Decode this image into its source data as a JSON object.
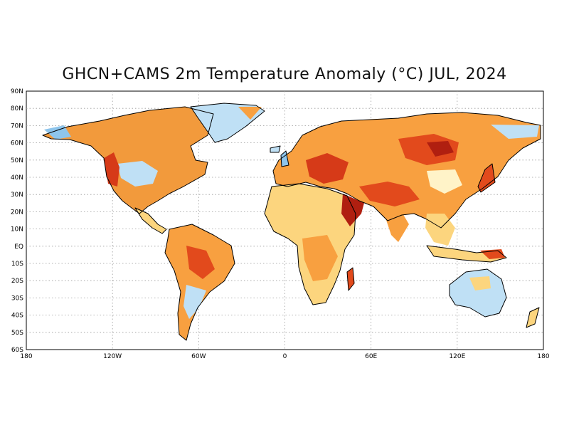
{
  "title": "GHCN+CAMS 2m Temperature Anomaly (°C) JUL, 2024",
  "lat_labels": [
    "90N",
    "80N",
    "70N",
    "60N",
    "50N",
    "40N",
    "30N",
    "20N",
    "10N",
    "EQ",
    "10S",
    "20S",
    "30S",
    "40S",
    "50S",
    "60S"
  ],
  "lon_labels": [
    "180",
    "120W",
    "60W",
    "0",
    "60E",
    "120E",
    "180"
  ],
  "colors": {
    "hot_dark": "#b01f10",
    "hot": "#e24a1c",
    "warm": "#f8a040",
    "mild": "#fcd57e",
    "near_zero": "#fff3c8",
    "cool": "#bfe0f5",
    "cold": "#8ec5ec",
    "coast": "#000000",
    "grid": "#9a9a9a"
  }
}
